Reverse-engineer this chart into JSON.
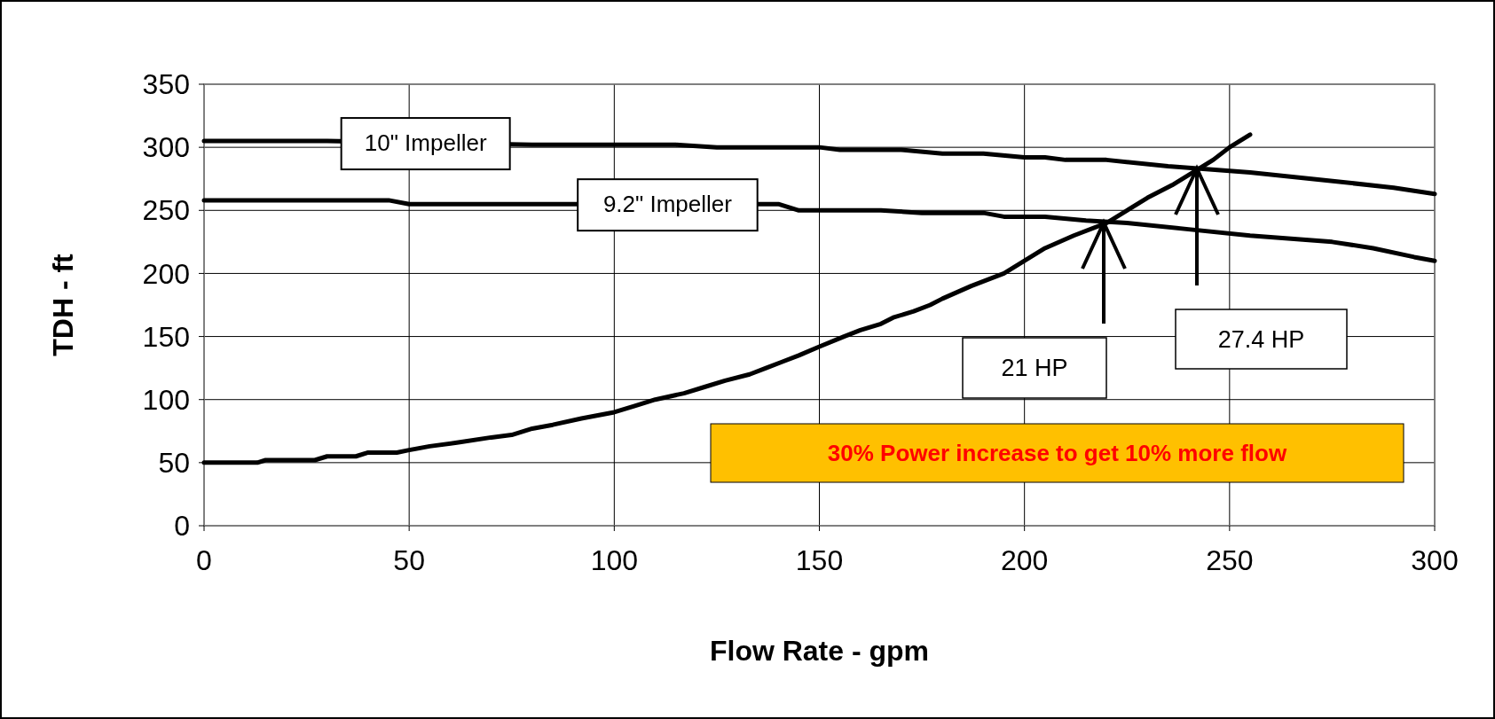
{
  "chart_data": {
    "type": "line",
    "xlabel": "Flow Rate - gpm",
    "ylabel": "TDH - ft",
    "xlim": [
      0,
      300
    ],
    "xticks": [
      0,
      50,
      100,
      150,
      200,
      250,
      300
    ],
    "ylim": [
      0,
      350
    ],
    "yticks": [
      0,
      50,
      100,
      150,
      200,
      250,
      300,
      350
    ],
    "grid": true,
    "marker": "none",
    "line_style": "solid",
    "series": [
      {
        "name": "10\" Impeller",
        "color": "#000000",
        "x": [
          0,
          30,
          80,
          115,
          125,
          150,
          155,
          170,
          180,
          190,
          200,
          205,
          210,
          220,
          235,
          255,
          270,
          290,
          300
        ],
        "values": [
          305,
          305,
          302,
          302,
          300,
          300,
          298,
          298,
          295,
          295,
          292,
          292,
          290,
          290,
          285,
          280,
          275,
          268,
          263
        ]
      },
      {
        "name": "9.2\" Impeller",
        "color": "#000000",
        "x": [
          0,
          45,
          50,
          140,
          145,
          165,
          175,
          190,
          195,
          205,
          215,
          225,
          240,
          255,
          275,
          285,
          295,
          300
        ],
        "values": [
          258,
          258,
          255,
          255,
          250,
          250,
          248,
          248,
          245,
          245,
          242,
          240,
          235,
          230,
          225,
          220,
          213,
          210
        ]
      },
      {
        "color": "#000000",
        "x": [
          0,
          13,
          15,
          27,
          30,
          37,
          40,
          47,
          50,
          55,
          62,
          70,
          75,
          80,
          85,
          92,
          100,
          105,
          110,
          117,
          122,
          127,
          133,
          137,
          141,
          145,
          150,
          156,
          160,
          165,
          168,
          173,
          177,
          180,
          187,
          195,
          200,
          205,
          212,
          220,
          225,
          230,
          236,
          241,
          246,
          250,
          255
        ],
        "values": [
          50,
          50,
          52,
          52,
          55,
          55,
          58,
          58,
          60,
          63,
          66,
          70,
          72,
          77,
          80,
          85,
          90,
          95,
          100,
          105,
          110,
          115,
          120,
          125,
          130,
          135,
          142,
          150,
          155,
          160,
          165,
          170,
          175,
          180,
          190,
          200,
          210,
          220,
          230,
          240,
          250,
          260,
          270,
          280,
          290,
          300,
          310
        ]
      }
    ],
    "annotations": [
      "21 HP",
      "27.4 HP",
      "30% Power increase to get 10% more flow"
    ]
  }
}
